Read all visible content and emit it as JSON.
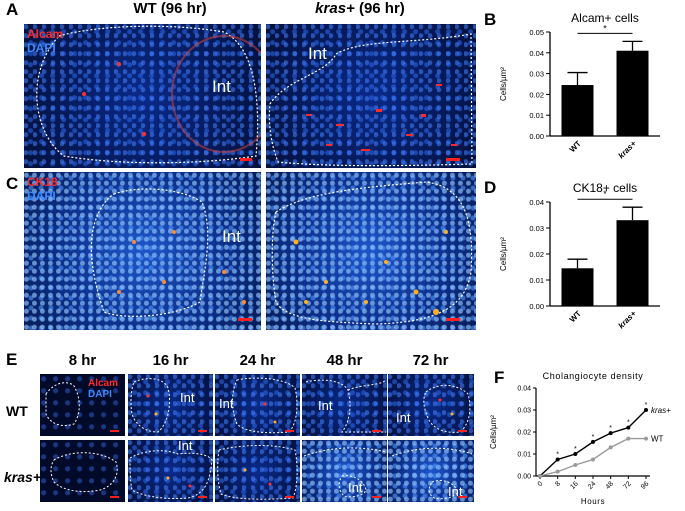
{
  "panels": {
    "A": {
      "letter": "A",
      "title_wt": "WT (96 hr)",
      "title_kras_gene": "kras+",
      "title_kras_rest": " (96 hr)",
      "stain_red": "Alcam",
      "stain_blue": "DAPI",
      "int_label": "Int"
    },
    "B": {
      "letter": "B"
    },
    "C": {
      "letter": "C",
      "stain_red": "CK18",
      "stain_blue": "DAPI",
      "int_label": "Int"
    },
    "D": {
      "letter": "D"
    },
    "E": {
      "letter": "E",
      "timepoints": [
        "8 hr",
        "16 hr",
        "24 hr",
        "48 hr",
        "72 hr"
      ],
      "row_wt": "WT",
      "row_kras": "kras+",
      "stain_red": "Alcam",
      "stain_blue": "DAPI",
      "int_label": "Int"
    },
    "F": {
      "letter": "F"
    }
  },
  "chart_data": [
    {
      "id": "B",
      "type": "bar",
      "title": "Alcam+ cells",
      "ylabel": "Cells/µm²",
      "categories": [
        "WT",
        "kras+"
      ],
      "values": [
        0.0245,
        0.041
      ],
      "errors": [
        0.006,
        0.0045
      ],
      "ylim": [
        0,
        0.05
      ],
      "yticks": [
        "0.00",
        "0.01",
        "0.02",
        "0.03",
        "0.04",
        "0.05"
      ],
      "significance": "*"
    },
    {
      "id": "D",
      "type": "bar",
      "title": "CK18+ cells",
      "ylabel": "Cells/µm²",
      "categories": [
        "WT",
        "kras+"
      ],
      "values": [
        0.0145,
        0.033
      ],
      "errors": [
        0.0035,
        0.005
      ],
      "ylim": [
        0,
        0.04
      ],
      "yticks": [
        "0.00",
        "0.01",
        "0.02",
        "0.03",
        "0.04"
      ],
      "significance": "*"
    },
    {
      "id": "F",
      "type": "line",
      "title": "Cholangiocyte density",
      "xlabel": "Hours",
      "ylabel": "Cells/µm²",
      "x": [
        "0",
        "8",
        "16",
        "24",
        "48",
        "72",
        "96"
      ],
      "ylim": [
        0,
        0.04
      ],
      "yticks": [
        "0.00",
        "0.01",
        "0.02",
        "0.03",
        "0.04"
      ],
      "series": [
        {
          "name": "kras+",
          "values": [
            0,
            0.0075,
            0.01,
            0.0155,
            0.0195,
            0.022,
            0.03
          ],
          "color": "#000000"
        },
        {
          "name": "WT",
          "values": [
            0,
            0.002,
            0.005,
            0.0075,
            0.013,
            0.017,
            0.017
          ],
          "color": "#9a9a9a"
        }
      ],
      "significance_marks": [
        "*",
        "*",
        "*",
        "*",
        "*",
        "*"
      ]
    }
  ]
}
